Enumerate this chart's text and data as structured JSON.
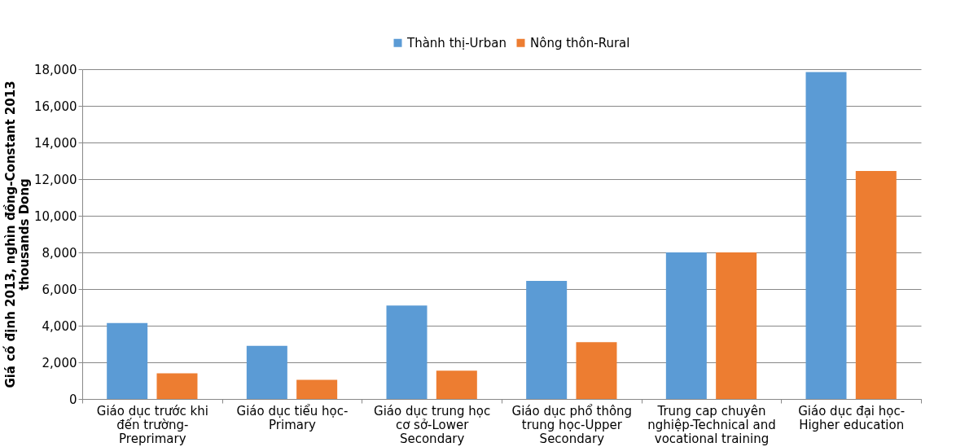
{
  "chart_data": {
    "type": "bar",
    "ylabel": "Giá cố định 2013, nghìn đồng-Constant 2013 thousands Dong",
    "categories": [
      "Giáo dục trước khi đến trường-Preprimary",
      "Giáo dục tiểu học-Primary",
      "Giáo dục trung học cơ sở-Lower Secondary",
      "Giáo dục phổ thông trung học-Upper Secondary",
      "Trung cap chuyên nghiệp-Technical and vocational training",
      "Giáo dục đại học-Higher education"
    ],
    "series": [
      {
        "name": "Thành thị-Urban",
        "color": "#5b9bd5",
        "values": [
          4150,
          2900,
          5100,
          6450,
          8000,
          17850
        ]
      },
      {
        "name": "Nông thôn-Rural",
        "color": "#ed7d31",
        "values": [
          1400,
          1050,
          1550,
          3100,
          8000,
          12450
        ]
      }
    ],
    "ylim": [
      0,
      18000
    ],
    "yticks": [
      0,
      {
        "value": 2000,
        "label": "2,000"
      },
      {
        "value": 4000,
        "label": "4,000"
      },
      {
        "value": 6000,
        "label": "6,000"
      },
      {
        "value": 8000,
        "label": "8,000"
      },
      {
        "value": 10000,
        "label": "10,000"
      },
      {
        "value": 12000,
        "label": "12,000"
      },
      {
        "value": 14000,
        "label": "14,000"
      },
      {
        "value": 16000,
        "label": "16,000"
      },
      {
        "value": 18000,
        "label": "18,000"
      }
    ],
    "grid": "y",
    "legend": "top"
  }
}
